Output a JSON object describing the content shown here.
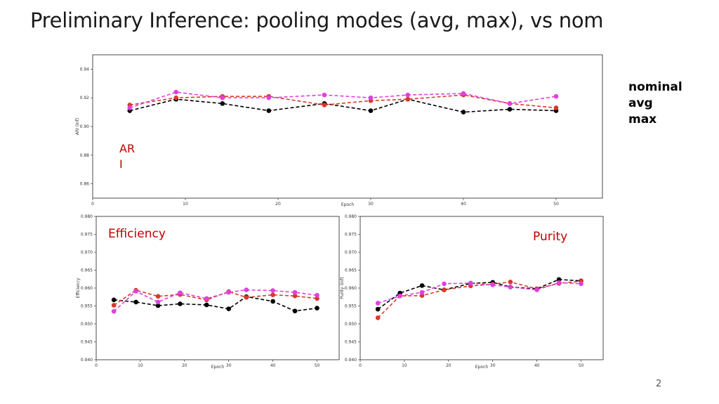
{
  "slide": {
    "title": "Preliminary Inference: pooling modes (avg, max), vs nom",
    "page_number": "2"
  },
  "legend": [
    {
      "label": "nominal",
      "color": "#000000"
    },
    {
      "label": "avg",
      "color": "#cc22cc"
    },
    {
      "label": "max",
      "color": "#c00000"
    }
  ],
  "overlay_labels": {
    "ari": "AR\nI",
    "efficiency": "Efficiency",
    "purity": "Purity"
  },
  "series_colors": {
    "nominal": "#000000",
    "avg": "#e040e0",
    "max": "#d63a2a"
  },
  "chart_data": [
    {
      "type": "line",
      "id": "ari",
      "xlabel": "Epoch",
      "ylabel": "ARI (inf)",
      "xlim": [
        0,
        55
      ],
      "ylim": [
        0.85,
        0.95
      ],
      "xticks": [
        "0",
        "10",
        "20",
        "30",
        "40",
        "50"
      ],
      "yticks": [
        "0.86",
        "0.88",
        "0.90",
        "0.92",
        "0.94"
      ],
      "x": [
        4,
        9,
        14,
        19,
        25,
        30,
        34,
        40,
        45,
        50
      ],
      "series": [
        {
          "name": "nominal",
          "values": [
            0.911,
            0.919,
            0.916,
            0.911,
            0.916,
            0.911,
            0.919,
            0.91,
            0.912,
            0.911
          ]
        },
        {
          "name": "max",
          "values": [
            0.915,
            0.92,
            0.921,
            0.921,
            0.915,
            0.918,
            0.919,
            0.922,
            0.916,
            0.913
          ]
        },
        {
          "name": "avg",
          "values": [
            0.913,
            0.924,
            0.92,
            0.92,
            0.922,
            0.92,
            0.922,
            0.923,
            0.916,
            0.921
          ]
        }
      ]
    },
    {
      "type": "line",
      "id": "efficiency",
      "xlabel": "Epoch",
      "ylabel": "Efficiency",
      "xlim": [
        0,
        55
      ],
      "ylim": [
        0.94,
        0.98
      ],
      "xticks": [
        "0",
        "10",
        "20",
        "30",
        "40",
        "50"
      ],
      "yticks": [
        "0.940",
        "0.945",
        "0.950",
        "0.955",
        "0.960",
        "0.965",
        "0.970",
        "0.975",
        "0.980"
      ],
      "x": [
        4,
        9,
        14,
        19,
        25,
        30,
        34,
        40,
        45,
        50
      ],
      "series": [
        {
          "name": "nominal",
          "values": [
            0.9567,
            0.9561,
            0.9551,
            0.9556,
            0.9553,
            0.9542,
            0.9576,
            0.9563,
            0.9536,
            0.9544
          ]
        },
        {
          "name": "max",
          "values": [
            0.9552,
            0.9594,
            0.9577,
            0.9582,
            0.9567,
            0.959,
            0.9574,
            0.9581,
            0.9578,
            0.9571
          ]
        },
        {
          "name": "avg",
          "values": [
            0.9535,
            0.9591,
            0.9561,
            0.9587,
            0.9571,
            0.9588,
            0.9595,
            0.9593,
            0.9588,
            0.958
          ]
        }
      ]
    },
    {
      "type": "line",
      "id": "purity",
      "xlabel": "Epoch",
      "ylabel": "Purity (inf)",
      "xlim": [
        0,
        55
      ],
      "ylim": [
        0.94,
        0.98
      ],
      "xticks": [
        "0",
        "10",
        "20",
        "30",
        "40",
        "50"
      ],
      "yticks": [
        "0.940",
        "0.945",
        "0.950",
        "0.955",
        "0.960",
        "0.965",
        "0.970",
        "0.975",
        "0.980"
      ],
      "x": [
        4,
        9,
        14,
        19,
        25,
        30,
        34,
        40,
        45,
        50
      ],
      "series": [
        {
          "name": "nominal",
          "values": [
            0.9541,
            0.9586,
            0.9607,
            0.9595,
            0.9613,
            0.9616,
            0.9603,
            0.9598,
            0.9624,
            0.962
          ]
        },
        {
          "name": "max",
          "values": [
            0.9517,
            0.9578,
            0.9579,
            0.9595,
            0.9606,
            0.9611,
            0.9617,
            0.9598,
            0.9613,
            0.9619
          ]
        },
        {
          "name": "avg",
          "values": [
            0.9558,
            0.9578,
            0.9588,
            0.9612,
            0.9614,
            0.9609,
            0.9603,
            0.9595,
            0.9615,
            0.9612
          ]
        }
      ]
    }
  ]
}
